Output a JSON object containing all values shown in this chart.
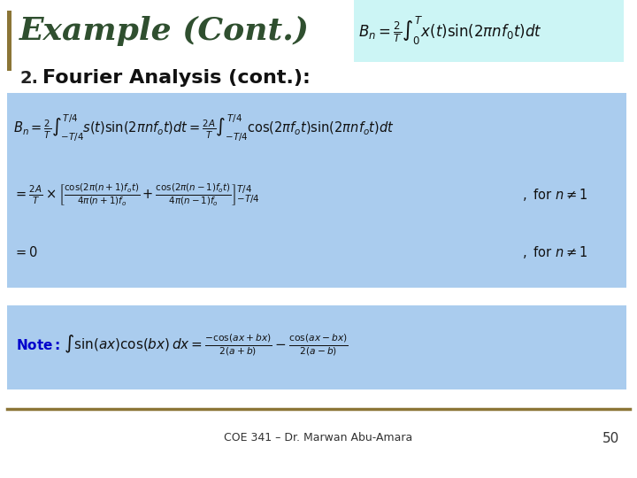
{
  "bg_color": "#ffffff",
  "title_text": "Example (Cont.)",
  "title_color": "#2F4F2F",
  "left_bar_color": "#8B7536",
  "header_box_color": "#ccf5f5",
  "main_box_color": "#aaccee",
  "note_box_color": "#aaccee",
  "item_number": "2.",
  "item_label": "Fourier Analysis (cont.):",
  "item_color": "#000000",
  "formula_header": "B_n = \\frac{2}{T}\\int_0^{T} x(t)\\sin(2\\pi n f_0 t)dt",
  "formula_main_line1": "B_n = \\frac{2}{T}\\int_{-T/4}^{T/4} s(t)\\sin(2\\pi n f_o t)dt = \\frac{2A}{T}\\int_{-T/4}^{T/4} \\cos(2\\pi f_o t)\\sin(2\\pi n f_o t)dt",
  "formula_main_line2": "= \\frac{2A}{T} \\times \\left[\\frac{\\cos(2\\pi(n+1)f_o t)}{4\\pi(n+1)f_o} + \\frac{\\cos(2\\pi(n-1)f_o t)}{4\\pi(n-1)f_o}\\right]_{-T/4}^{T/4} \\,,\\ \\text{for}\\ n \\neq 1",
  "formula_main_line3": "= 0 \\hspace{12cm} ,\\ \\text{for}\\ n \\neq 1",
  "formula_note": "\\text{Note: } \\int \\sin(ax)\\cos(bx)dx = \\frac{-\\cos(ax+bx)}{2(a+b)} - \\frac{\\cos(ax-bx)}{2(a-b)}",
  "footer_text": "COE 341 – Dr. Marwan Abu-Amara",
  "footer_number": "50",
  "footer_color": "#333333",
  "bottom_line_color": "#8B7536"
}
